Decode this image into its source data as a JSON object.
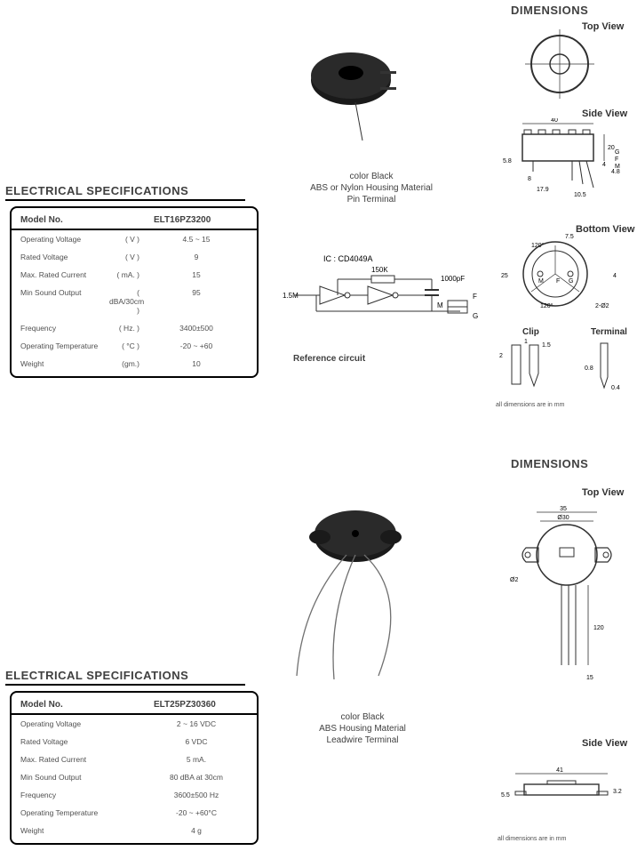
{
  "product1": {
    "dimensions_title": "DIMENSIONS",
    "view_top": "Top View",
    "view_side": "Side View",
    "view_bottom": "Bottom View",
    "clip_label": "Clip",
    "terminal_label": "Terminal",
    "footnote": "all dimensions are in mm",
    "photo_caption_l1": "color Black",
    "photo_caption_l2": "ABS or Nylon Housing Material",
    "photo_caption_l3": "Pin Terminal",
    "specs_title": "ELECTRICAL SPECIFICATIONS",
    "model_hdr": "Model No.",
    "model": "ELT16PZ3200",
    "rows": [
      {
        "label": "Operating Voltage",
        "unit": "( V )",
        "val": "4.5 ~ 15"
      },
      {
        "label": "Rated Voltage",
        "unit": "( V )",
        "val": "9"
      },
      {
        "label": "Max. Rated Current",
        "unit": "( mA. )",
        "val": "15"
      },
      {
        "label": "Min Sound Output",
        "unit": "( dBA/30cm )",
        "val": "95"
      },
      {
        "label": "Frequency",
        "unit": "( Hz. )",
        "val": "3400±500"
      },
      {
        "label": "Operating Temperature",
        "unit": "( °C )",
        "val": "-20 ~ +60"
      },
      {
        "label": "Weight",
        "unit": "(gm.)",
        "val": "10"
      }
    ],
    "circuit": {
      "ic_label": "IC : CD4049A",
      "r1": "1.5M",
      "r2": "150K",
      "c1": "1000pF",
      "m": "M",
      "g": "G",
      "f": "F",
      "caption": "Reference circuit"
    },
    "dims": {
      "side_w": "40",
      "side_h": "20",
      "side_l1": "5.8",
      "side_l2": "4",
      "side_l3": "4.8",
      "side_b1": "8",
      "side_b2": "17.9",
      "side_b3": "10.5",
      "side_G": "G",
      "side_F": "F",
      "side_M": "M",
      "bot_a1": "120°",
      "bot_a2": "120°",
      "bot_7_5": "7.5",
      "bot_25": "25",
      "bot_4": "4",
      "bot_M": "M",
      "bot_F": "F",
      "bot_G": "G",
      "bot_d": "2-Ø2",
      "clip_2": "2",
      "clip_1": "1",
      "clip_1_5": "1.5",
      "term_0_8": "0.8",
      "term_0_4": "0.4"
    }
  },
  "product2": {
    "dimensions_title": "DIMENSIONS",
    "view_top": "Top View",
    "view_side": "Side View",
    "footnote": "all dimensions are in mm",
    "photo_caption_l1": "color Black",
    "photo_caption_l2": "ABS Housing Material",
    "photo_caption_l3": "Leadwire Terminal",
    "specs_title": "ELECTRICAL SPECIFICATIONS",
    "model_hdr": "Model No.",
    "model": "ELT25PZ30360",
    "rows": [
      {
        "label": "Operating Voltage",
        "unit": "",
        "val": "2 ~ 16 VDC"
      },
      {
        "label": "Rated Voltage",
        "unit": "",
        "val": "6 VDC"
      },
      {
        "label": "Max. Rated Current",
        "unit": "",
        "val": "5 mA."
      },
      {
        "label": "Min Sound Output",
        "unit": "",
        "val": "80 dBA at 30cm"
      },
      {
        "label": "Frequency",
        "unit": "",
        "val": "3600±500 Hz"
      },
      {
        "label": "Operating Temperature",
        "unit": "",
        "val": "-20 ~ +60°C"
      },
      {
        "label": "Weight",
        "unit": "",
        "val": "4 g"
      }
    ],
    "dims": {
      "top_w": "35",
      "top_d": "Ø30",
      "top_d2": "Ø2",
      "top_lead": "120",
      "top_15": "15",
      "side_w": "41",
      "side_h": "3.2",
      "side_l": "5.5"
    }
  },
  "colors": {
    "text": "#404040",
    "line": "#303030",
    "bg": "#ffffff",
    "photo": "#1a1a1a",
    "wire": "#707070"
  }
}
